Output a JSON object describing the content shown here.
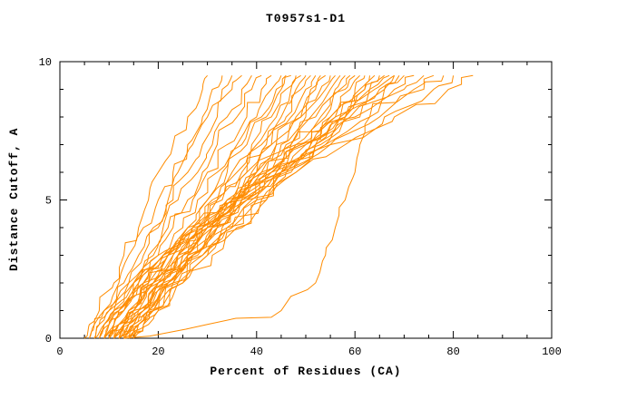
{
  "page": {
    "background": "#FFFFFF"
  },
  "chart_data": {
    "type": "line",
    "title": "T0957s1-D1",
    "xlabel": "Percent of Residues (CA)",
    "ylabel": "Distance Cutoff, A",
    "xlim": [
      0,
      100
    ],
    "ylim": [
      0,
      10
    ],
    "xticks": [
      0,
      20,
      40,
      60,
      80,
      100
    ],
    "yticks": [
      0,
      5,
      10
    ],
    "x_minor_step": 5,
    "y_minor_step": 1,
    "grid": false,
    "legend": "none",
    "line_color": "#FF8C00",
    "axis_color": "#000000",
    "y_levels": [
      0,
      0.5,
      1,
      2,
      3,
      4,
      5,
      6,
      7,
      8,
      9,
      9.5
    ],
    "curves": [
      [
        5,
        6,
        8,
        11,
        13,
        16,
        18,
        20,
        23,
        26,
        29,
        30
      ],
      [
        6,
        7,
        9,
        12,
        14,
        17,
        20,
        23,
        26,
        29,
        31,
        33
      ],
      [
        7,
        8,
        10,
        13,
        16,
        19,
        22,
        24,
        27,
        30,
        33,
        35
      ],
      [
        8,
        9,
        11,
        14,
        17,
        20,
        23,
        26,
        29,
        32,
        35,
        37
      ],
      [
        8,
        10,
        12,
        15,
        18,
        21,
        24,
        28,
        31,
        34,
        37,
        39
      ],
      [
        9,
        11,
        13,
        16,
        19,
        22,
        26,
        29,
        32,
        36,
        39,
        41
      ],
      [
        9,
        11,
        13,
        17,
        20,
        23,
        27,
        30,
        34,
        38,
        41,
        43
      ],
      [
        10,
        12,
        14,
        17,
        21,
        25,
        28,
        32,
        36,
        40,
        43,
        45
      ],
      [
        10,
        12,
        15,
        18,
        22,
        26,
        30,
        33,
        37,
        41,
        44,
        46
      ],
      [
        11,
        13,
        15,
        19,
        22,
        26,
        30,
        34,
        38,
        42,
        45,
        47
      ],
      [
        11,
        13,
        16,
        19,
        23,
        27,
        31,
        35,
        39,
        43,
        46,
        48
      ],
      [
        12,
        14,
        16,
        20,
        24,
        28,
        32,
        36,
        40,
        44,
        47,
        49
      ],
      [
        12,
        14,
        17,
        20,
        24,
        28,
        32,
        37,
        41,
        45,
        48,
        50
      ],
      [
        13,
        15,
        17,
        21,
        25,
        29,
        33,
        38,
        42,
        46,
        49,
        51
      ],
      [
        13,
        15,
        18,
        21,
        26,
        30,
        34,
        38,
        43,
        47,
        50,
        52
      ],
      [
        14,
        16,
        18,
        22,
        26,
        30,
        35,
        39,
        43,
        48,
        51,
        53
      ],
      [
        14,
        16,
        19,
        22,
        27,
        31,
        36,
        40,
        44,
        49,
        52,
        54
      ],
      [
        15,
        17,
        19,
        23,
        27,
        32,
        36,
        41,
        45,
        50,
        53,
        55
      ],
      [
        10,
        12,
        15,
        20,
        25,
        30,
        35,
        40,
        44,
        49,
        54,
        56
      ],
      [
        11,
        13,
        16,
        21,
        26,
        31,
        36,
        41,
        46,
        51,
        55,
        57
      ],
      [
        12,
        14,
        17,
        22,
        27,
        32,
        37,
        42,
        47,
        52,
        56,
        58
      ],
      [
        12,
        15,
        17,
        22,
        27,
        33,
        38,
        43,
        48,
        53,
        57,
        59
      ],
      [
        13,
        15,
        18,
        23,
        28,
        34,
        39,
        44,
        49,
        54,
        58,
        60
      ],
      [
        13,
        16,
        18,
        23,
        29,
        34,
        40,
        45,
        50,
        55,
        59,
        61
      ],
      [
        14,
        16,
        19,
        24,
        29,
        35,
        40,
        46,
        51,
        56,
        60,
        62
      ],
      [
        14,
        17,
        19,
        24,
        30,
        35,
        41,
        46,
        52,
        57,
        61,
        63
      ],
      [
        15,
        17,
        20,
        25,
        30,
        36,
        42,
        47,
        53,
        58,
        62,
        64
      ],
      [
        15,
        18,
        20,
        25,
        31,
        37,
        42,
        48,
        54,
        59,
        63,
        65
      ],
      [
        9,
        10,
        12,
        17,
        22,
        27,
        34,
        40,
        47,
        55,
        62,
        66
      ],
      [
        10,
        11,
        13,
        18,
        23,
        29,
        35,
        42,
        48,
        56,
        63,
        67
      ],
      [
        10,
        12,
        14,
        18,
        24,
        29,
        36,
        42,
        49,
        57,
        64,
        68
      ],
      [
        11,
        12,
        14,
        19,
        24,
        30,
        36,
        43,
        50,
        58,
        65,
        69
      ],
      [
        11,
        13,
        15,
        19,
        25,
        31,
        37,
        44,
        51,
        58,
        66,
        70
      ],
      [
        12,
        13,
        15,
        20,
        26,
        32,
        38,
        45,
        52,
        60,
        68,
        72
      ],
      [
        8,
        9,
        11,
        15,
        21,
        28,
        35,
        43,
        52,
        61,
        70,
        74
      ],
      [
        9,
        10,
        12,
        16,
        22,
        29,
        37,
        45,
        54,
        63,
        72,
        76
      ],
      [
        7,
        8,
        10,
        15,
        21,
        28,
        36,
        45,
        55,
        65,
        74,
        78
      ],
      [
        6,
        7,
        9,
        14,
        20,
        27,
        36,
        45,
        55,
        66,
        76,
        80
      ],
      [
        7,
        9,
        11,
        16,
        22,
        30,
        38,
        48,
        58,
        68,
        79,
        84
      ],
      [
        13,
        30,
        45,
        52,
        54,
        56,
        58,
        60,
        61,
        63,
        66,
        68
      ]
    ]
  }
}
